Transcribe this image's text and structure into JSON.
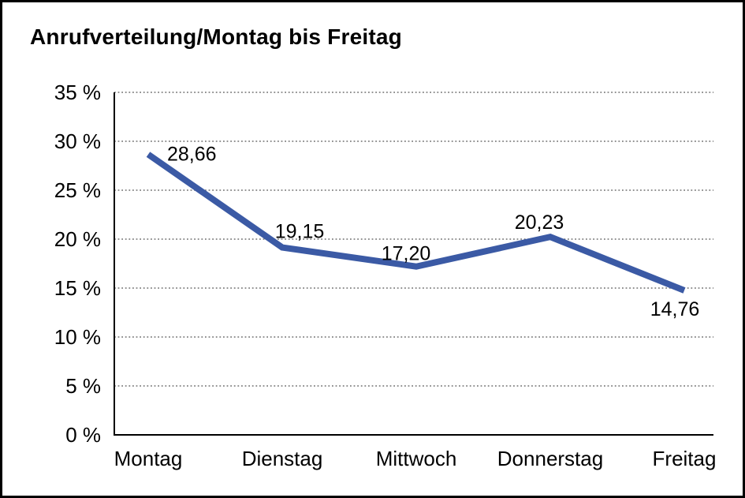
{
  "chart_data": {
    "type": "line",
    "title": "Anrufverteilung/Montag bis Freitag",
    "categories": [
      "Montag",
      "Dienstag",
      "Mittwoch",
      "Donnerstag",
      "Freitag"
    ],
    "series": [
      {
        "name": "Anrufverteilung",
        "values": [
          28.66,
          19.15,
          17.2,
          20.23,
          14.76
        ]
      }
    ],
    "value_labels": [
      "28,66",
      "19,15",
      "17,20",
      "20,23",
      "14,76"
    ],
    "label_positions": [
      "right",
      "above",
      "above",
      "above",
      "below"
    ],
    "xlabel": "",
    "ylabel": "",
    "ylim": [
      0,
      35
    ],
    "y_tick_values": [
      0,
      5,
      10,
      15,
      20,
      25,
      30,
      35
    ],
    "y_tick_labels": [
      "0 %",
      "5 %",
      "10 %",
      "15 %",
      "20 %",
      "25 %",
      "30 %",
      "35 %"
    ],
    "grid": "horizontal-dotted",
    "legend": "none",
    "colors": {
      "line": "#3B5AA5",
      "grid": "#6E6E6E",
      "axis": "#000000",
      "text": "#000000",
      "background": "#FFFFFF",
      "border": "#000000"
    }
  }
}
